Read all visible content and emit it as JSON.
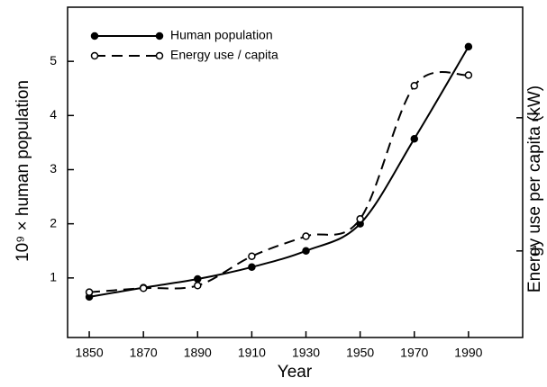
{
  "chart_data": {
    "type": "line",
    "x_label": "Year",
    "y_label": "10⁹ × human population",
    "y2_label": "Energy use per capita (kW)",
    "x": [
      1850,
      1870,
      1890,
      1910,
      1930,
      1950,
      1970,
      1990
    ],
    "xlim": [
      1842,
      2010
    ],
    "xticks": [
      1850,
      1870,
      1890,
      1910,
      1930,
      1950,
      1970,
      1990
    ],
    "ylim": [
      -0.1,
      6.0
    ],
    "yticks": [
      1,
      2,
      3,
      4,
      5
    ],
    "y2lim": [
      0.35,
      2.83
    ],
    "y2ticks": [
      1,
      2
    ],
    "legend": "upper left",
    "series": [
      {
        "name": "Human population",
        "color": "#000000",
        "marker": "filled",
        "dash": false,
        "values": [
          0.65,
          0.82,
          0.98,
          1.2,
          1.5,
          2.0,
          3.57,
          5.27
        ]
      },
      {
        "name": "Energy use / capita",
        "color": "#000000",
        "marker": "open",
        "dash": true,
        "axis": "y2",
        "values": [
          0.69,
          0.72,
          0.74,
          0.96,
          1.11,
          1.24,
          2.24,
          2.32
        ]
      }
    ]
  }
}
